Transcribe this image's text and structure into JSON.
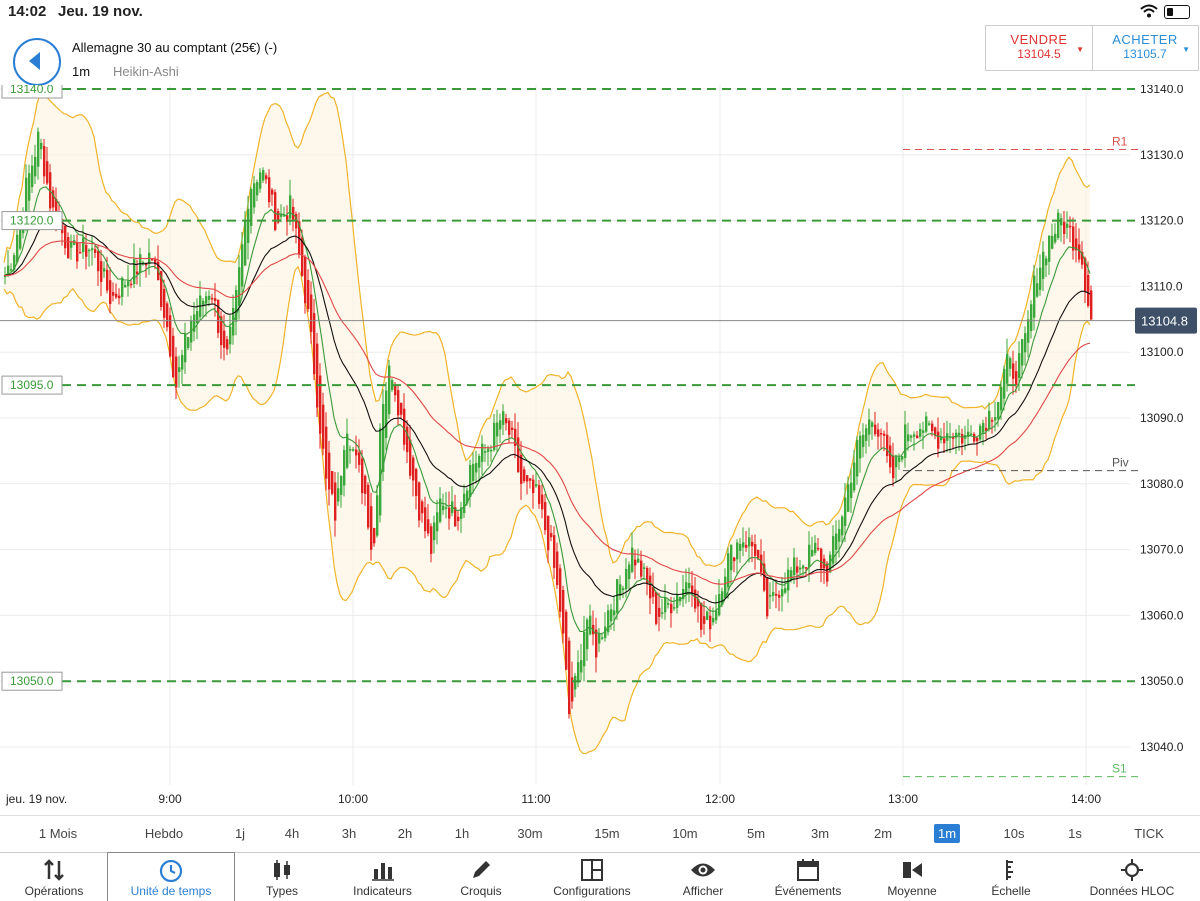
{
  "status": {
    "time": "14:02",
    "date": "Jeu. 19 nov."
  },
  "instrument": {
    "title": "Allemagne 30 au comptant (25€) (-)",
    "timeframe": "1m",
    "chart_type": "Heikin-Ashi"
  },
  "trade": {
    "sell_label": "VENDRE",
    "sell_price": "13104.5",
    "buy_label": "ACHETER",
    "buy_price": "13105.7"
  },
  "chart_data": {
    "type": "candlestick",
    "price_axis": {
      "min": 13035,
      "max": 13144,
      "ticks": [
        "13140.0",
        "13130.0",
        "13120.0",
        "13110.0",
        "13100.0",
        "13090.0",
        "13080.0",
        "13070.0",
        "13060.0",
        "13050.0",
        "13040.0"
      ]
    },
    "time_axis": {
      "ticks": [
        "jeu. 19 nov.",
        "9:00",
        "10:00",
        "11:00",
        "12:00",
        "13:00",
        "14:00"
      ]
    },
    "current_price": "13104.8",
    "current_price_value": 13104.8,
    "alert_lines": [
      {
        "value": 13140,
        "label": "13140.0"
      },
      {
        "value": 13120,
        "label": "13120.0"
      },
      {
        "value": 13095,
        "label": "13095.0"
      },
      {
        "value": 13050,
        "label": "13050.0"
      }
    ],
    "pivot_lines": [
      {
        "name": "R1",
        "value": 13130.8,
        "color": "#d9534f"
      },
      {
        "name": "Piv",
        "value": 13082,
        "color": "#555555"
      },
      {
        "name": "S1",
        "value": 13035.5,
        "color": "#5cb85c"
      }
    ],
    "close_path": [
      [
        0,
        13110
      ],
      [
        12,
        13115
      ],
      [
        25,
        13125
      ],
      [
        38,
        13133
      ],
      [
        50,
        13122
      ],
      [
        70,
        13115
      ],
      [
        90,
        13116
      ],
      [
        110,
        13108
      ],
      [
        130,
        13112
      ],
      [
        150,
        13115
      ],
      [
        165,
        13105
      ],
      [
        175,
        13095
      ],
      [
        190,
        13105
      ],
      [
        210,
        13110
      ],
      [
        225,
        13098
      ],
      [
        235,
        13108
      ],
      [
        248,
        13125
      ],
      [
        260,
        13128
      ],
      [
        275,
        13120
      ],
      [
        290,
        13122
      ],
      [
        305,
        13108
      ],
      [
        315,
        13095
      ],
      [
        325,
        13080
      ],
      [
        335,
        13075
      ],
      [
        345,
        13090
      ],
      [
        355,
        13083
      ],
      [
        365,
        13078
      ],
      [
        372,
        13068
      ],
      [
        380,
        13092
      ],
      [
        390,
        13098
      ],
      [
        400,
        13090
      ],
      [
        410,
        13082
      ],
      [
        420,
        13075
      ],
      [
        430,
        13070
      ],
      [
        440,
        13078
      ],
      [
        455,
        13075
      ],
      [
        470,
        13083
      ],
      [
        485,
        13085
      ],
      [
        500,
        13090
      ],
      [
        510,
        13087
      ],
      [
        520,
        13080
      ],
      [
        535,
        13078
      ],
      [
        550,
        13070
      ],
      [
        560,
        13060
      ],
      [
        568,
        13045
      ],
      [
        575,
        13050
      ],
      [
        585,
        13060
      ],
      [
        595,
        13055
      ],
      [
        605,
        13060
      ],
      [
        620,
        13065
      ],
      [
        630,
        13070
      ],
      [
        645,
        13065
      ],
      [
        655,
        13060
      ],
      [
        670,
        13062
      ],
      [
        690,
        13066
      ],
      [
        700,
        13058
      ],
      [
        712,
        13060
      ],
      [
        725,
        13068
      ],
      [
        740,
        13072
      ],
      [
        755,
        13070
      ],
      [
        765,
        13060
      ],
      [
        780,
        13065
      ],
      [
        800,
        13068
      ],
      [
        815,
        13070
      ],
      [
        825,
        13066
      ],
      [
        840,
        13075
      ],
      [
        855,
        13085
      ],
      [
        870,
        13090
      ],
      [
        880,
        13088
      ],
      [
        890,
        13080
      ],
      [
        905,
        13088
      ],
      [
        920,
        13089
      ],
      [
        935,
        13087
      ],
      [
        950,
        13088
      ],
      [
        965,
        13087
      ],
      [
        980,
        13089
      ],
      [
        995,
        13092
      ],
      [
        1005,
        13098
      ],
      [
        1015,
        13097
      ],
      [
        1025,
        13102
      ],
      [
        1035,
        13112
      ],
      [
        1050,
        13118
      ],
      [
        1060,
        13120
      ],
      [
        1070,
        13118
      ],
      [
        1080,
        13115
      ],
      [
        1090,
        13105
      ]
    ],
    "series": [
      {
        "name": "EMA-fast",
        "color": "#3a9a3a"
      },
      {
        "name": "EMA-slow",
        "color": "#111111"
      },
      {
        "name": "SMA-long",
        "color": "#e04848"
      },
      {
        "name": "Bollinger",
        "color": "#f0b429"
      }
    ]
  },
  "timeframes": [
    "1 Mois",
    "Hebdo",
    "1j",
    "4h",
    "3h",
    "2h",
    "1h",
    "30m",
    "15m",
    "10m",
    "5m",
    "3m",
    "2m",
    "1m",
    "10s",
    "1s",
    "TICK"
  ],
  "active_timeframe": "1m",
  "tabs": [
    {
      "label": "Opérations",
      "icon": "arrows-updown-icon"
    },
    {
      "label": "Unité de temps",
      "icon": "clock-icon"
    },
    {
      "label": "Types",
      "icon": "candles-icon"
    },
    {
      "label": "Indicateurs",
      "icon": "bars-icon"
    },
    {
      "label": "Croquis",
      "icon": "pencil-icon"
    },
    {
      "label": "Configurations",
      "icon": "layout-icon"
    },
    {
      "label": "Afficher",
      "icon": "eye-icon"
    },
    {
      "label": "Événements",
      "icon": "calendar-icon"
    },
    {
      "label": "Moyenne",
      "icon": "average-icon"
    },
    {
      "label": "Échelle",
      "icon": "scale-icon"
    },
    {
      "label": "Données HLOC",
      "icon": "crosshair-icon"
    }
  ]
}
